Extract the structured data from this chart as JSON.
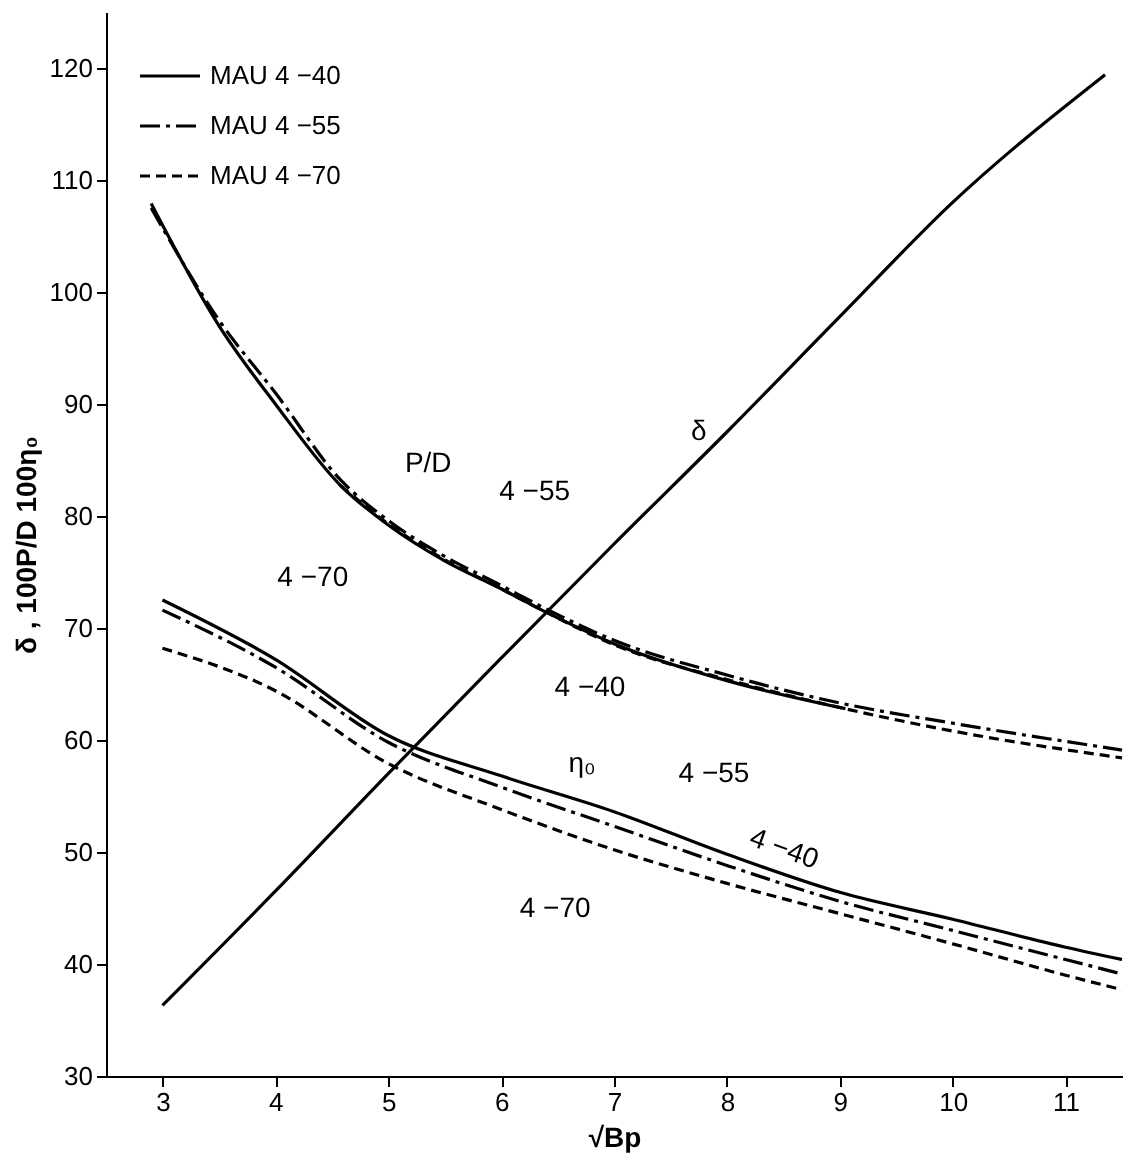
{
  "chart_data": {
    "type": "line",
    "xlabel": "√Bp",
    "ylabel": "δ , 100P/D    100η₀",
    "xlim": [
      2.5,
      11.5
    ],
    "xticks": [
      3,
      4,
      5,
      6,
      7,
      8,
      9,
      10,
      11
    ],
    "ylim": [
      30,
      125
    ],
    "yticks": [
      30,
      40,
      50,
      60,
      70,
      80,
      90,
      100,
      110,
      120
    ],
    "grid": false,
    "legend": "top left",
    "series": [
      {
        "name": "MAU 4 −40",
        "color": "#000000",
        "line_style": "solid",
        "x": [
          2.9,
          3.5,
          4,
          4.58,
          5,
          5.5,
          6,
          6.42,
          7,
          8,
          9.05
        ],
        "values": [
          107.9,
          97,
          90,
          82.7,
          79.2,
          76,
          73.5,
          71.3,
          68.6,
          65.3,
          62.8
        ]
      },
      {
        "name": "MAU 4 −55",
        "color": "#000000",
        "line_style": "dashdot",
        "x": [
          2.9,
          3.5,
          4,
          4.58,
          5,
          5.5,
          6,
          6.42,
          7,
          8,
          9,
          10,
          11.5
        ],
        "values": [
          107.5,
          97.5,
          91,
          83.2,
          79.6,
          76.4,
          73.8,
          71.6,
          68.9,
          65.8,
          63.3,
          61.5,
          59.1
        ]
      },
      {
        "name": "MAU 4 −70",
        "color": "#000000",
        "line_style": "dashed",
        "x": [
          4.58,
          5,
          5.5,
          6,
          6.42,
          7,
          8,
          9,
          10,
          11.5
        ],
        "values": [
          82.7,
          79.3,
          76.1,
          73.5,
          71.3,
          68.5,
          65.4,
          62.9,
          60.8,
          58.4
        ]
      },
      {
        "color": "#000000",
        "line_style": "solid",
        "x": [
          3,
          4,
          5,
          6,
          7,
          8,
          9,
          10,
          11,
          11.5
        ],
        "values": [
          72.5,
          67.2,
          60.4,
          56.8,
          53.6,
          49.8,
          46.4,
          44,
          41.5,
          40.4
        ]
      },
      {
        "color": "#000000",
        "line_style": "dashdot",
        "x": [
          3,
          4,
          5,
          6,
          7,
          8,
          9,
          10,
          11,
          11.5
        ],
        "values": [
          71.6,
          66.5,
          59.8,
          55.8,
          52.3,
          48.8,
          45.6,
          43,
          40.4,
          39.1
        ]
      },
      {
        "color": "#000000",
        "line_style": "dashed",
        "x": [
          3,
          4,
          5,
          6,
          7,
          8,
          9,
          10,
          11,
          11.5
        ],
        "values": [
          68.2,
          64.4,
          57.9,
          53.8,
          50.2,
          47.2,
          44.5,
          41.8,
          39,
          37.7
        ]
      },
      {
        "color": "#000000",
        "line_style": "solid",
        "x": [
          3,
          4,
          5,
          6,
          7,
          8,
          9,
          10,
          11.35
        ],
        "values": [
          36.3,
          46.5,
          57,
          67.3,
          77.5,
          87.5,
          97.8,
          108,
          119.4
        ]
      }
    ],
    "annotations": [
      {
        "text": "P/D",
        "x": 5,
        "y": 79.6
      },
      {
        "text": "δ",
        "x": 8,
        "y": 87.5
      },
      {
        "text": "4 −55",
        "x": 5.5,
        "y": 76.4
      },
      {
        "text": "4 −70",
        "x": 4.58,
        "y": 82.7
      },
      {
        "text": "4 −40",
        "x": 7,
        "y": 68.6
      },
      {
        "text": "η₀",
        "x": 7,
        "y": 53.6
      },
      {
        "text": "4 −55",
        "x": 7,
        "y": 52.3
      },
      {
        "text": "4 −40",
        "x": 8,
        "y": 49.8
      },
      {
        "text": "4 −70",
        "x": 6,
        "y": 53.8
      }
    ]
  }
}
